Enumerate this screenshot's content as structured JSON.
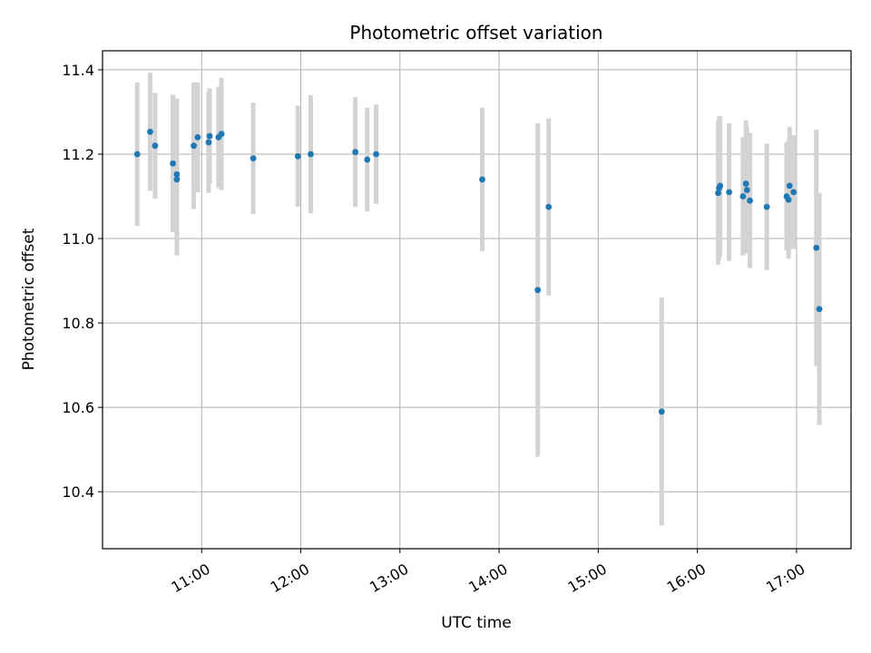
{
  "chart_data": {
    "type": "scatter",
    "title": "Photometric offset variation",
    "xlabel": "UTC time",
    "ylabel": "Photometric offset",
    "grid": true,
    "xlim": [
      10.0,
      17.55
    ],
    "ylim": [
      10.265,
      11.445
    ],
    "x_ticks": [
      {
        "value": 11,
        "label": "11:00"
      },
      {
        "value": 12,
        "label": "12:00"
      },
      {
        "value": 13,
        "label": "13:00"
      },
      {
        "value": 14,
        "label": "14:00"
      },
      {
        "value": 15,
        "label": "15:00"
      },
      {
        "value": 16,
        "label": "16:00"
      },
      {
        "value": 17,
        "label": "17:00"
      }
    ],
    "y_ticks": [
      {
        "value": 10.4,
        "label": "10.4"
      },
      {
        "value": 10.6,
        "label": "10.6"
      },
      {
        "value": 10.8,
        "label": "10.8"
      },
      {
        "value": 11.0,
        "label": "11.0"
      },
      {
        "value": 11.2,
        "label": "11.2"
      },
      {
        "value": 11.4,
        "label": "11.4"
      }
    ],
    "point_color": "#1f77b4",
    "errorbar_color": "#d3d3d3",
    "points": [
      {
        "x": 10.35,
        "y": 11.2,
        "err": 0.17
      },
      {
        "x": 10.48,
        "y": 11.253,
        "err": 0.14
      },
      {
        "x": 10.53,
        "y": 11.22,
        "err": 0.125
      },
      {
        "x": 10.71,
        "y": 11.178,
        "err": 0.163
      },
      {
        "x": 10.75,
        "y": 11.14,
        "err": 0.18
      },
      {
        "x": 10.75,
        "y": 11.152,
        "err": 0.18
      },
      {
        "x": 10.92,
        "y": 11.22,
        "err": 0.15
      },
      {
        "x": 10.96,
        "y": 11.24,
        "err": 0.13
      },
      {
        "x": 11.07,
        "y": 11.228,
        "err": 0.12
      },
      {
        "x": 11.08,
        "y": 11.243,
        "err": 0.113
      },
      {
        "x": 11.17,
        "y": 11.24,
        "err": 0.12
      },
      {
        "x": 11.2,
        "y": 11.248,
        "err": 0.133
      },
      {
        "x": 11.52,
        "y": 11.19,
        "err": 0.132
      },
      {
        "x": 11.97,
        "y": 11.195,
        "err": 0.12
      },
      {
        "x": 12.1,
        "y": 11.2,
        "err": 0.14
      },
      {
        "x": 12.55,
        "y": 11.205,
        "err": 0.13
      },
      {
        "x": 12.67,
        "y": 11.187,
        "err": 0.123
      },
      {
        "x": 12.76,
        "y": 11.2,
        "err": 0.118
      },
      {
        "x": 13.83,
        "y": 11.14,
        "err": 0.17
      },
      {
        "x": 14.39,
        "y": 10.878,
        "err": 0.395
      },
      {
        "x": 14.5,
        "y": 11.075,
        "err": 0.21
      },
      {
        "x": 15.64,
        "y": 10.59,
        "err": 0.27
      },
      {
        "x": 16.21,
        "y": 11.108,
        "err": 0.17
      },
      {
        "x": 16.22,
        "y": 11.12,
        "err": 0.17
      },
      {
        "x": 16.23,
        "y": 11.125,
        "err": 0.165
      },
      {
        "x": 16.32,
        "y": 11.11,
        "err": 0.163
      },
      {
        "x": 16.46,
        "y": 11.1,
        "err": 0.14
      },
      {
        "x": 16.49,
        "y": 11.13,
        "err": 0.15
      },
      {
        "x": 16.5,
        "y": 11.115,
        "err": 0.15
      },
      {
        "x": 16.53,
        "y": 11.09,
        "err": 0.16
      },
      {
        "x": 16.7,
        "y": 11.075,
        "err": 0.15
      },
      {
        "x": 16.9,
        "y": 11.1,
        "err": 0.128
      },
      {
        "x": 16.92,
        "y": 11.092,
        "err": 0.14
      },
      {
        "x": 16.93,
        "y": 11.125,
        "err": 0.14
      },
      {
        "x": 16.97,
        "y": 11.11,
        "err": 0.135
      },
      {
        "x": 17.2,
        "y": 10.978,
        "err": 0.28
      },
      {
        "x": 17.23,
        "y": 10.833,
        "err": 0.275
      }
    ]
  }
}
